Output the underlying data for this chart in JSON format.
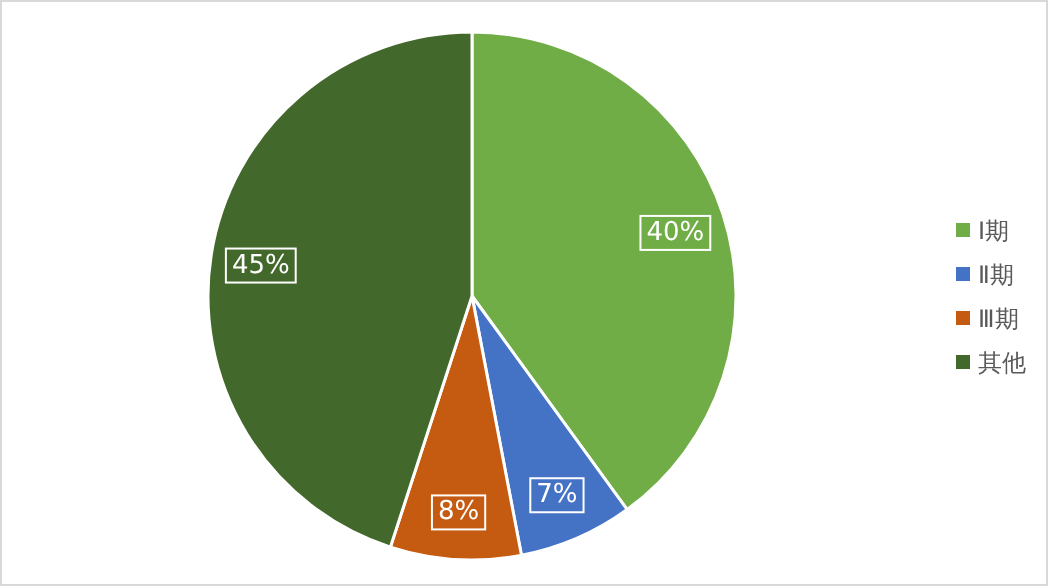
{
  "chart_data": {
    "type": "pie",
    "categories": [
      "Ⅰ期",
      "Ⅱ期",
      "Ⅲ期",
      "其他"
    ],
    "values": [
      40,
      7,
      8,
      45
    ],
    "colors": [
      "#70ad47",
      "#4472c4",
      "#c55a11",
      "#43682b"
    ],
    "value_labels": [
      "40%",
      "7%",
      "8%",
      "45%"
    ],
    "legend": "right"
  }
}
